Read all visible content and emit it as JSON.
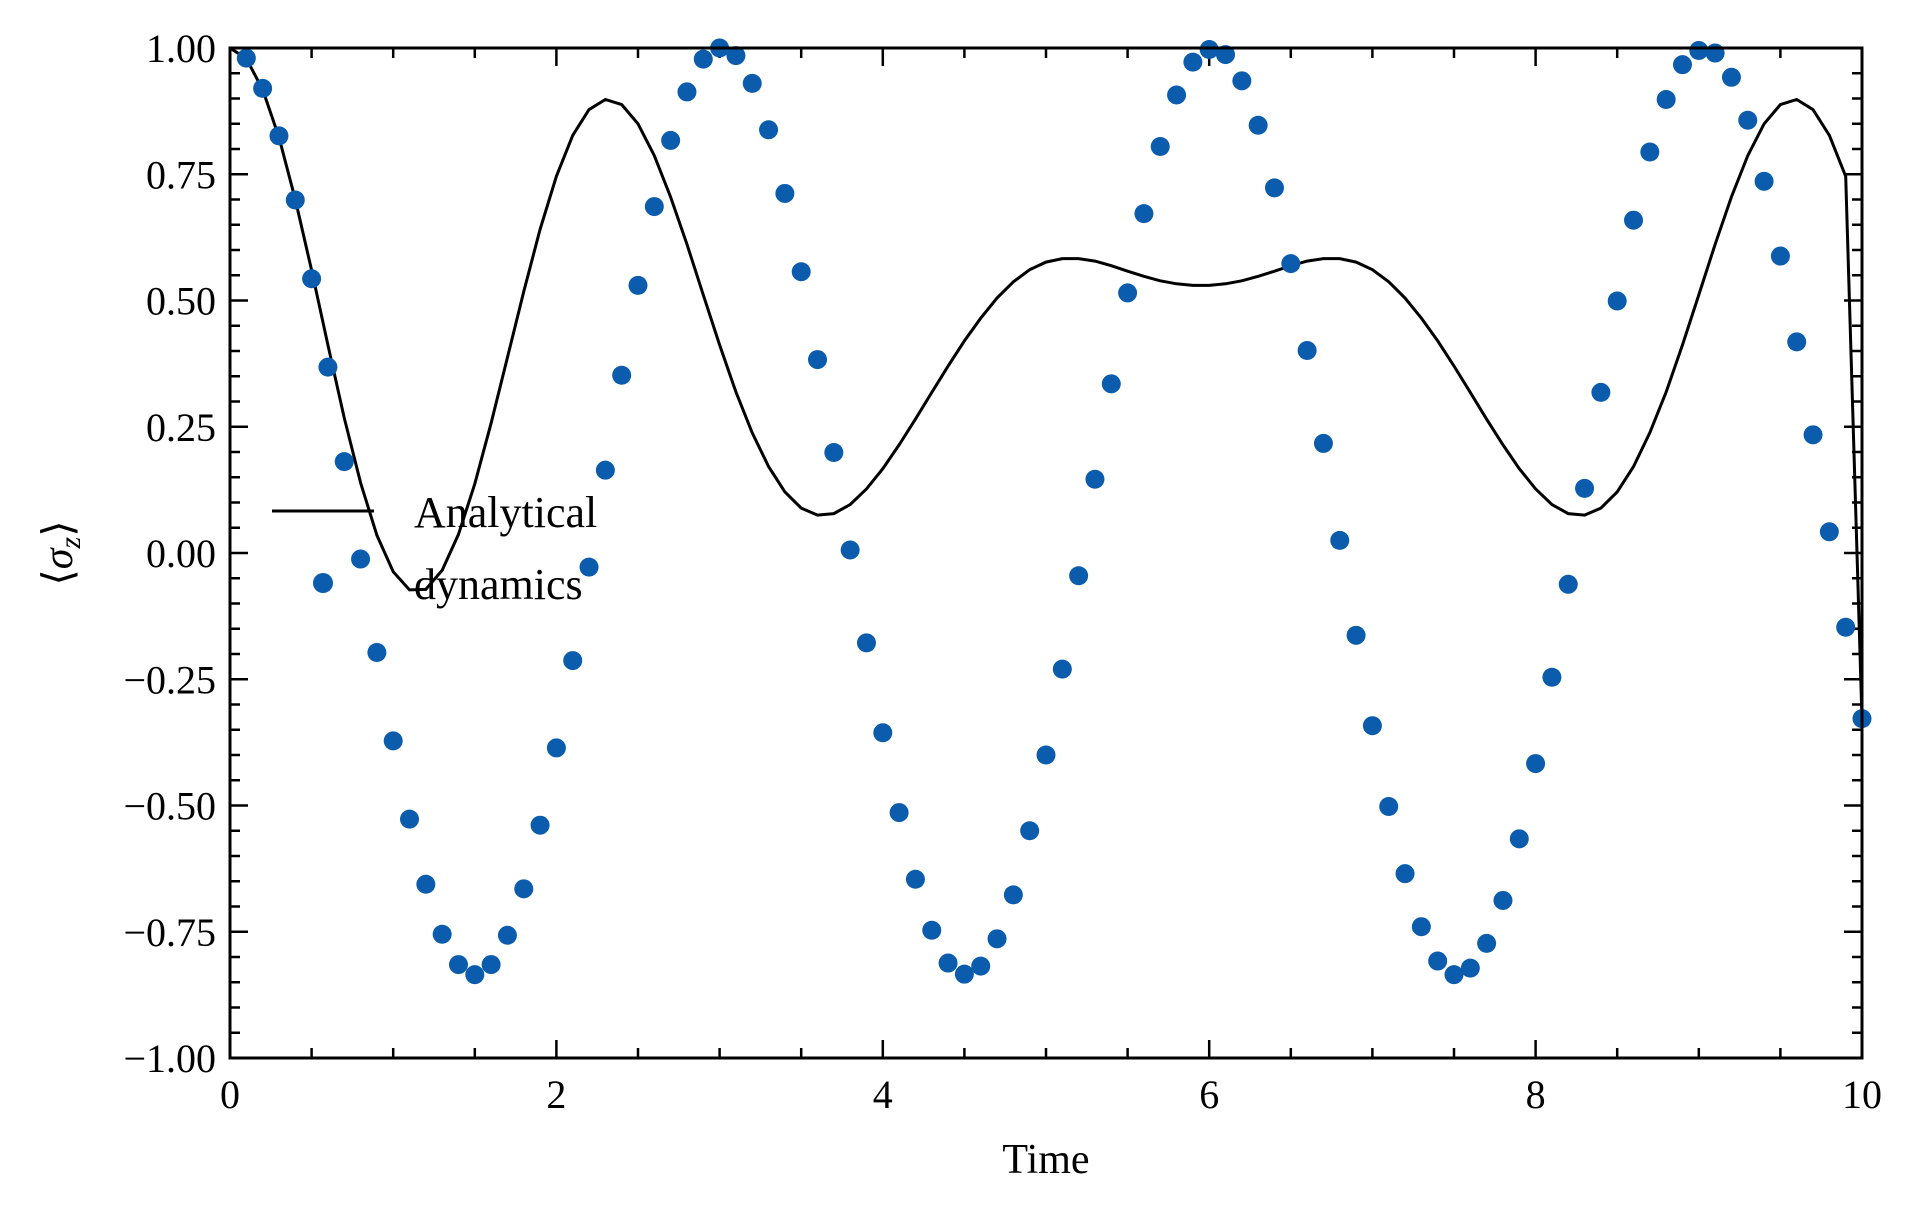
{
  "chart_data": {
    "type": "line",
    "title": "",
    "xlabel": "Time",
    "ylabel": "⟨σz⟩",
    "ylabel_symbol": "σ",
    "ylabel_subscript": "z",
    "xlim": [
      0,
      10
    ],
    "ylim": [
      -1.0,
      1.0
    ],
    "grid": false,
    "legend_position": "center-left",
    "x_ticks": [
      0,
      2,
      4,
      6,
      8,
      10
    ],
    "x_tick_labels": [
      "0",
      "2",
      "4",
      "6",
      "8",
      "10"
    ],
    "y_ticks": [
      1.0,
      0.75,
      0.5,
      0.25,
      0.0,
      -0.25,
      -0.5,
      -0.75,
      -1.0
    ],
    "y_tick_labels": [
      "1.00",
      "0.75",
      "0.50",
      "0.25",
      "0.00",
      "−0.25",
      "−0.50",
      "−0.75",
      "−1.00"
    ],
    "series": [
      {
        "name": "Analytical",
        "style": "line",
        "color": "#000000",
        "x": [
          0,
          0.1,
          0.2,
          0.3,
          0.4,
          0.5,
          0.6,
          0.7,
          0.8,
          0.9,
          1.0,
          1.1,
          1.2,
          1.3,
          1.4,
          1.5,
          1.6,
          1.7,
          1.8,
          1.9,
          2.0,
          2.1,
          2.2,
          2.3,
          2.4,
          2.5,
          2.6,
          2.7,
          2.8,
          2.9,
          3.0,
          3.1,
          3.2,
          3.3,
          3.4,
          3.5,
          3.6,
          3.7,
          3.8,
          3.9,
          4.0,
          4.1,
          4.2,
          4.3,
          4.4,
          4.5,
          4.6,
          4.7,
          4.8,
          4.9,
          5.0,
          5.1,
          5.2,
          5.3,
          5.4,
          5.5,
          5.6,
          5.7,
          5.8,
          5.9,
          6.0,
          6.1,
          6.2,
          6.3,
          6.4,
          6.5,
          6.6,
          6.7,
          6.8,
          6.9,
          7.0,
          7.1,
          7.2,
          7.3,
          7.4,
          7.5,
          7.6,
          7.7,
          7.8,
          7.9,
          8.0,
          8.1,
          8.2,
          8.3,
          8.4,
          8.5,
          8.6,
          8.7,
          8.8,
          8.9,
          9.0,
          9.1,
          9.2,
          9.3,
          9.4,
          9.5,
          9.6,
          9.7,
          9.8,
          9.9,
          10.0
        ],
        "y": [
          1.0,
          0.979,
          0.918,
          0.823,
          0.7,
          0.56,
          0.412,
          0.268,
          0.139,
          0.035,
          -0.037,
          -0.073,
          -0.072,
          -0.034,
          0.037,
          0.137,
          0.257,
          0.387,
          0.518,
          0.641,
          0.746,
          0.827,
          0.878,
          0.898,
          0.888,
          0.85,
          0.787,
          0.705,
          0.611,
          0.511,
          0.412,
          0.319,
          0.238,
          0.171,
          0.121,
          0.089,
          0.075,
          0.078,
          0.096,
          0.127,
          0.167,
          0.214,
          0.265,
          0.318,
          0.37,
          0.42,
          0.465,
          0.505,
          0.537,
          0.561,
          0.576,
          0.583,
          0.583,
          0.578,
          0.569,
          0.558,
          0.548,
          0.539,
          0.533,
          0.53,
          0.53,
          0.533,
          0.539,
          0.548,
          0.558,
          0.569,
          0.578,
          0.583,
          0.583,
          0.576,
          0.561,
          0.537,
          0.505,
          0.465,
          0.42,
          0.37,
          0.318,
          0.265,
          0.214,
          0.167,
          0.127,
          0.096,
          0.078,
          0.075,
          0.089,
          0.121,
          0.171,
          0.238,
          0.319,
          0.412,
          0.511,
          0.611,
          0.705,
          0.787,
          0.85,
          0.888,
          0.898,
          0.878,
          0.827,
          0.746,
          -0.33
        ]
      },
      {
        "name": "dynamics",
        "style": "markers",
        "color": "#0b5cad",
        "x": [
          0.1,
          0.2,
          0.3,
          0.4,
          0.5,
          0.6,
          0.7,
          0.8,
          0.9,
          1.0,
          1.1,
          1.2,
          1.3,
          1.4,
          1.5,
          1.6,
          1.7,
          1.8,
          1.9,
          2.0,
          2.1,
          2.2,
          2.3,
          2.4,
          2.5,
          2.6,
          2.7,
          2.8,
          2.9,
          3.0,
          3.1,
          3.2,
          3.3,
          3.4,
          3.5,
          3.6,
          3.7,
          3.8,
          3.9,
          4.0,
          4.1,
          4.2,
          4.3,
          4.4,
          4.5,
          4.6,
          4.7,
          4.8,
          4.9,
          5.0,
          5.1,
          5.2,
          5.3,
          5.4,
          5.5,
          5.6,
          5.7,
          5.8,
          5.9,
          6.0,
          6.1,
          6.2,
          6.3,
          6.4,
          6.5,
          6.6,
          6.7,
          6.8,
          6.9,
          7.0,
          7.1,
          7.2,
          7.3,
          7.4,
          7.5,
          7.6,
          7.7,
          7.8,
          7.9,
          8.0,
          8.1,
          8.2,
          8.3,
          8.4,
          8.5,
          8.6,
          8.7,
          8.8,
          8.9,
          9.0,
          9.1,
          9.2,
          9.3,
          9.4,
          9.5,
          9.6,
          9.7,
          9.8,
          9.9,
          10.0
        ],
        "y": [
          0.98,
          0.92,
          0.826,
          0.699,
          0.543,
          0.368,
          0.181,
          -0.012,
          -0.197,
          -0.372,
          -0.527,
          -0.656,
          -0.755,
          -0.815,
          -0.835,
          -0.815,
          -0.757,
          -0.665,
          -0.539,
          -0.386,
          -0.213,
          -0.028,
          0.164,
          0.352,
          0.53,
          0.686,
          0.817,
          0.913,
          0.978,
          1.0,
          0.985,
          0.93,
          0.838,
          0.712,
          0.557,
          0.383,
          0.199,
          0.006,
          -0.178,
          -0.356,
          -0.514,
          -0.646,
          -0.747,
          -0.812,
          -0.834,
          -0.818,
          -0.764,
          -0.677,
          -0.55,
          -0.4,
          -0.23,
          -0.045,
          0.146,
          0.335,
          0.515,
          0.672,
          0.805,
          0.907,
          0.972,
          0.997,
          0.987,
          0.935,
          0.847,
          0.723,
          0.573,
          0.401,
          0.217,
          0.025,
          -0.163,
          -0.342,
          -0.502,
          -0.635,
          -0.74,
          -0.808,
          -0.835,
          -0.822,
          -0.773,
          -0.688,
          -0.566,
          -0.417,
          -0.246,
          -0.062,
          0.128,
          0.318,
          0.499,
          0.659,
          0.794,
          0.898,
          0.967,
          0.995,
          0.99,
          0.942,
          0.857,
          0.736,
          0.588,
          0.418,
          0.234,
          0.042,
          -0.147,
          -0.328
        ]
      }
    ]
  }
}
